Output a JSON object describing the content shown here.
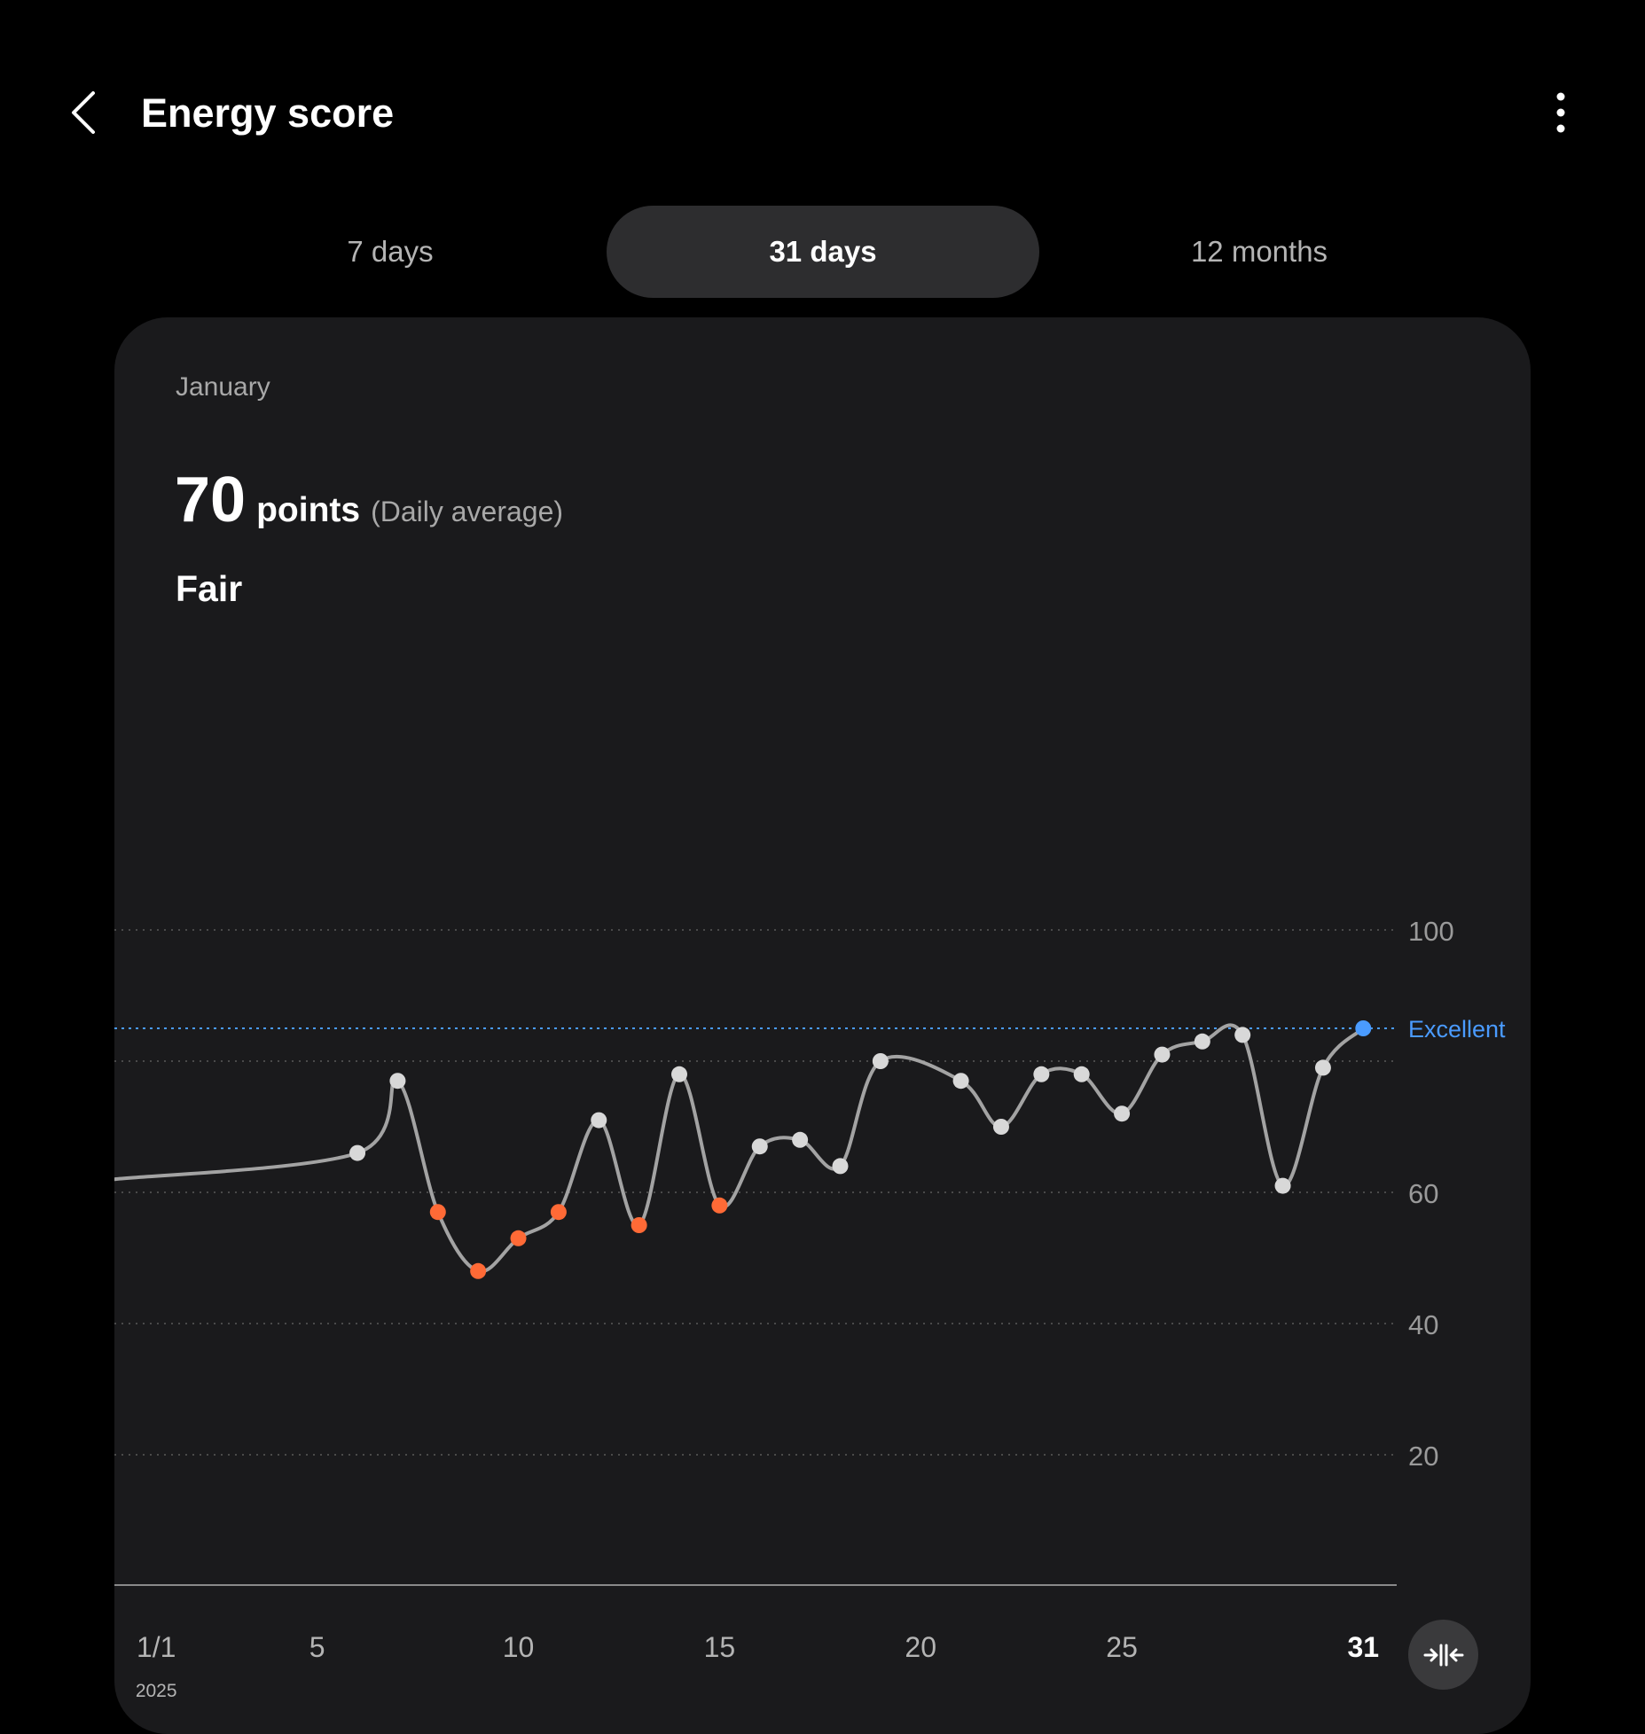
{
  "header": {
    "title": "Energy score",
    "back_icon": "chevron-left-icon",
    "more_icon": "more-vertical-icon"
  },
  "tabs": [
    {
      "label": "7 days",
      "active": false
    },
    {
      "label": "31 days",
      "active": true
    },
    {
      "label": "12 months",
      "active": false
    }
  ],
  "summary": {
    "period": "January",
    "score": "70",
    "unit": "points",
    "note": "(Daily average)",
    "status": "Fair"
  },
  "colors": {
    "background": "#000000",
    "card": "#1a1a1c",
    "line": "#a3a3a3",
    "point_normal": "#d8d8d8",
    "point_low": "#ff6a36",
    "point_selected": "#4a9bff",
    "reference_line": "#4a9bff",
    "grid": "#4a4a4a"
  },
  "chart_data": {
    "type": "line",
    "x_start_day": 1,
    "x_end_day": 31,
    "ylim": [
      0,
      100
    ],
    "y_ticks": [
      "100",
      "60",
      "40",
      "20"
    ],
    "y_tick_values": [
      100,
      60,
      40,
      20
    ],
    "extra_gridlines": [
      80
    ],
    "reference_line": {
      "label": "Excellent",
      "value": 85
    },
    "x_tick_labels": [
      {
        "day": 1,
        "label": "1/1",
        "sublabel": "2025"
      },
      {
        "day": 5,
        "label": "5"
      },
      {
        "day": 10,
        "label": "10"
      },
      {
        "day": 15,
        "label": "15"
      },
      {
        "day": 20,
        "label": "20"
      },
      {
        "day": 25,
        "label": "25"
      },
      {
        "day": 31,
        "label": "31",
        "bold": true
      }
    ],
    "incoming_line_value": 62,
    "points": [
      {
        "day": 6,
        "value": 66,
        "level": "normal"
      },
      {
        "day": 7,
        "value": 77,
        "level": "normal"
      },
      {
        "day": 8,
        "value": 57,
        "level": "low"
      },
      {
        "day": 9,
        "value": 48,
        "level": "low"
      },
      {
        "day": 10,
        "value": 53,
        "level": "low"
      },
      {
        "day": 11,
        "value": 57,
        "level": "low"
      },
      {
        "day": 12,
        "value": 71,
        "level": "normal"
      },
      {
        "day": 13,
        "value": 55,
        "level": "low"
      },
      {
        "day": 14,
        "value": 78,
        "level": "normal"
      },
      {
        "day": 15,
        "value": 58,
        "level": "low"
      },
      {
        "day": 16,
        "value": 67,
        "level": "normal"
      },
      {
        "day": 17,
        "value": 68,
        "level": "normal"
      },
      {
        "day": 18,
        "value": 64,
        "level": "normal"
      },
      {
        "day": 19,
        "value": 80,
        "level": "normal"
      },
      {
        "day": 21,
        "value": 77,
        "level": "normal"
      },
      {
        "day": 22,
        "value": 70,
        "level": "normal"
      },
      {
        "day": 23,
        "value": 78,
        "level": "normal"
      },
      {
        "day": 24,
        "value": 78,
        "level": "normal"
      },
      {
        "day": 25,
        "value": 72,
        "level": "normal"
      },
      {
        "day": 26,
        "value": 81,
        "level": "normal"
      },
      {
        "day": 27,
        "value": 83,
        "level": "normal"
      },
      {
        "day": 28,
        "value": 84,
        "level": "normal"
      },
      {
        "day": 29,
        "value": 61,
        "level": "normal"
      },
      {
        "day": 30,
        "value": 79,
        "level": "normal"
      },
      {
        "day": 31,
        "value": 85,
        "level": "selected"
      }
    ]
  },
  "fit_button": {
    "icon": "fit-compress-icon"
  }
}
